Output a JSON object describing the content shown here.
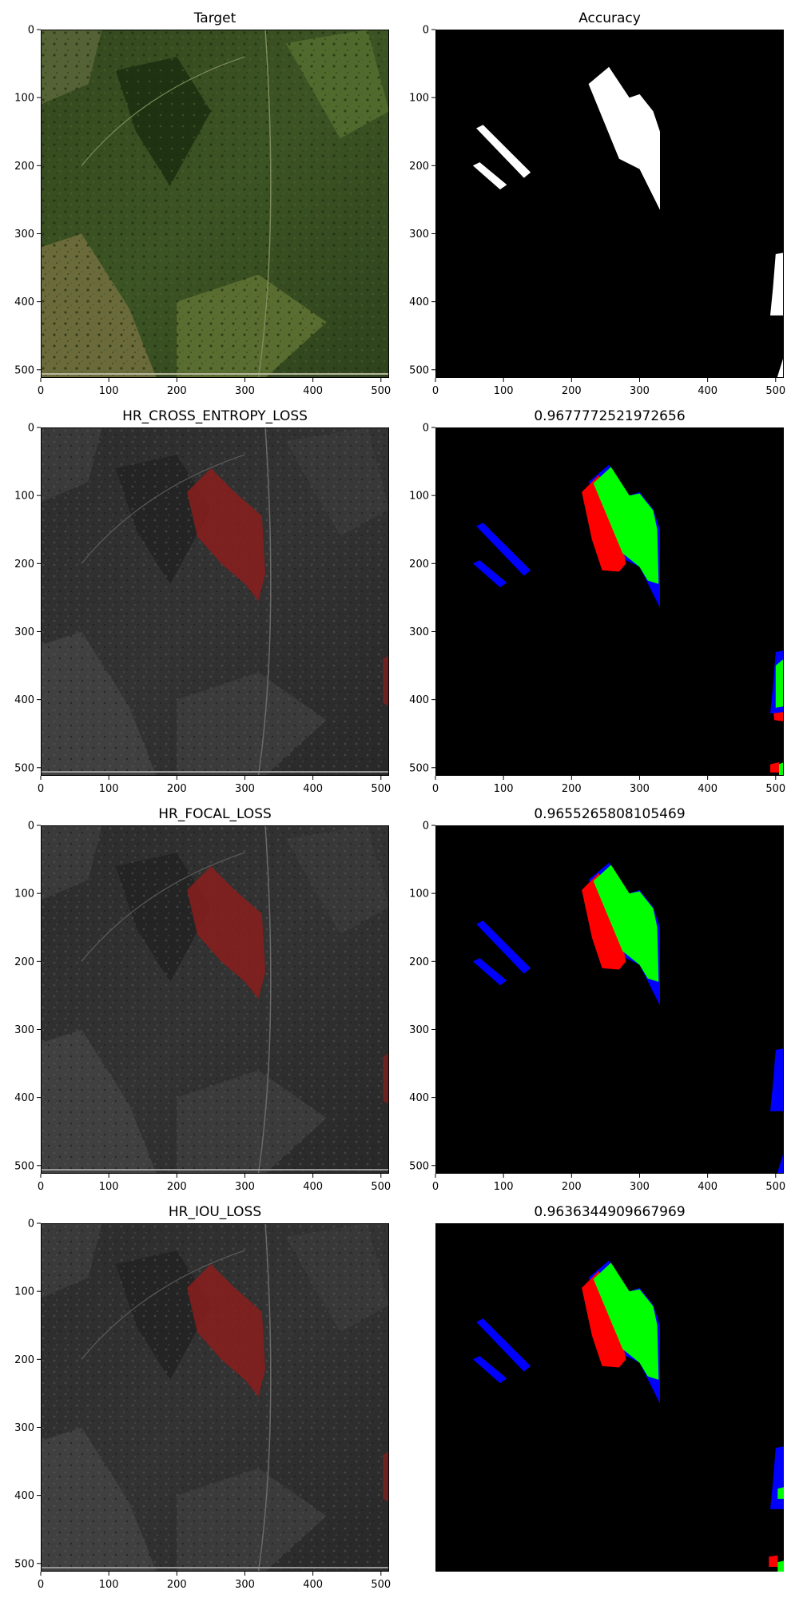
{
  "chart_data": [
    {
      "type": "image",
      "title": "Target",
      "image": "aerial-photo",
      "overlay": null,
      "xticks": [
        0,
        100,
        200,
        300,
        400,
        500
      ],
      "yticks": [
        0,
        100,
        200,
        300,
        400,
        500
      ],
      "show_axes": true,
      "xlim": [
        0,
        512
      ],
      "ylim": [
        512,
        0
      ]
    },
    {
      "type": "image",
      "title": "Accuracy",
      "image": "mask-white",
      "overlay": null,
      "xticks": [
        0,
        100,
        200,
        300,
        400,
        500
      ],
      "yticks": [
        0,
        100,
        200,
        300,
        400,
        500
      ],
      "show_axes": true,
      "xlim": [
        0,
        512
      ],
      "ylim": [
        512,
        0
      ]
    },
    {
      "type": "image",
      "title": "HR_CROSS_ENTROPY_LOSS",
      "image": "gray-photo",
      "overlay": "red-prediction",
      "xticks": [
        0,
        100,
        200,
        300,
        400,
        500
      ],
      "yticks": [
        0,
        100,
        200,
        300,
        400,
        500
      ],
      "show_axes": true,
      "xlim": [
        0,
        512
      ],
      "ylim": [
        512,
        0
      ]
    },
    {
      "type": "image",
      "title": "0.9677772521972656",
      "image": "error-map-1",
      "xticks": [
        0,
        100,
        200,
        300,
        400,
        500
      ],
      "yticks": [
        0,
        100,
        200,
        300,
        400,
        500
      ],
      "show_axes": true,
      "xlim": [
        0,
        512
      ],
      "ylim": [
        512,
        0
      ]
    },
    {
      "type": "image",
      "title": "HR_FOCAL_LOSS",
      "image": "gray-photo",
      "overlay": "red-prediction",
      "xticks": [
        0,
        100,
        200,
        300,
        400,
        500
      ],
      "yticks": [
        0,
        100,
        200,
        300,
        400,
        500
      ],
      "show_axes": true,
      "xlim": [
        0,
        512
      ],
      "ylim": [
        512,
        0
      ]
    },
    {
      "type": "image",
      "title": "0.9655265808105469",
      "image": "error-map-2",
      "xticks": [
        0,
        100,
        200,
        300,
        400,
        500
      ],
      "yticks": [
        0,
        100,
        200,
        300,
        400,
        500
      ],
      "show_axes": true,
      "xlim": [
        0,
        512
      ],
      "ylim": [
        512,
        0
      ]
    },
    {
      "type": "image",
      "title": "HR_IOU_LOSS",
      "image": "gray-photo",
      "overlay": "red-prediction",
      "xticks": [
        0,
        100,
        200,
        300,
        400,
        500
      ],
      "yticks": [
        0,
        100,
        200,
        300,
        400,
        500
      ],
      "show_axes": true,
      "xlim": [
        0,
        512
      ],
      "ylim": [
        512,
        0
      ]
    },
    {
      "type": "image",
      "title": "0.9636344909667969",
      "image": "error-map-3",
      "xticks": [],
      "yticks": [],
      "show_axes": false,
      "xlim": [
        0,
        512
      ],
      "ylim": [
        512,
        0
      ]
    }
  ],
  "colors": {
    "true_positive": "#00ff00",
    "false_positive": "#ff0000",
    "false_negative": "#0000ff",
    "mask": "#ffffff",
    "background": "#000000",
    "prediction_overlay": "#8a1f1c"
  }
}
